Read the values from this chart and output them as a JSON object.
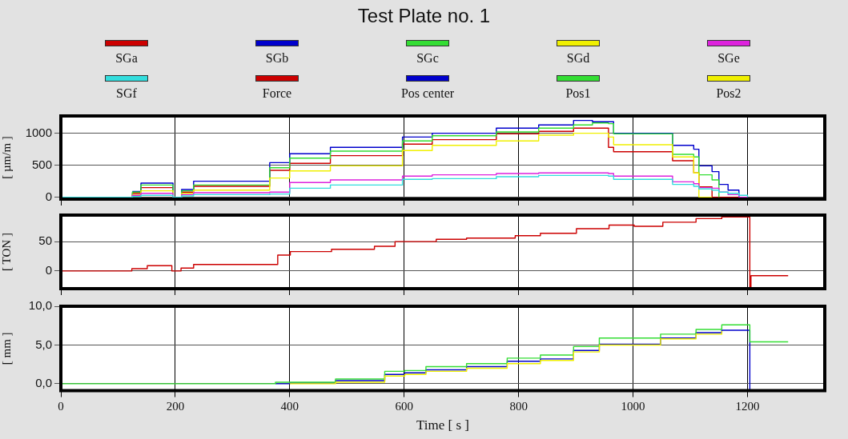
{
  "chart_data": [
    {
      "type": "step",
      "title": "Test Plate no. 1",
      "ylabel": "[ µm/m ]",
      "legend": "top",
      "grid": true,
      "tick_labels": "y",
      "xlim": [
        0,
        1335
      ],
      "xticks": [
        0,
        200,
        400,
        600,
        800,
        1000,
        1200
      ],
      "ylim": [
        -30,
        1270
      ],
      "yticks": [
        0,
        500,
        1000
      ],
      "x": [
        0,
        120,
        125,
        140,
        196,
        211,
        232,
        338,
        365,
        400,
        471,
        555,
        597,
        649,
        761,
        835,
        896,
        929,
        957,
        966,
        1045,
        1069,
        1106,
        1115,
        1138,
        1150,
        1166,
        1185,
        1200
      ],
      "series": [
        {
          "name": "SGa",
          "color": "#cc0000",
          "values": [
            0,
            0,
            60,
            150,
            0,
            80,
            170,
            170,
            420,
            530,
            650,
            650,
            830,
            900,
            990,
            1030,
            1080,
            1080,
            780,
            710,
            710,
            570,
            380,
            160,
            0,
            0,
            0,
            0,
            0
          ]
        },
        {
          "name": "SGb",
          "color": "#0000cc",
          "values": [
            null,
            null,
            90,
            220,
            0,
            120,
            250,
            250,
            540,
            680,
            780,
            780,
            940,
            1000,
            1080,
            1130,
            1200,
            1180,
            1180,
            1000,
            1000,
            810,
            750,
            490,
            400,
            200,
            110,
            0,
            0
          ]
        },
        {
          "name": "SGc",
          "color": "#33dd33",
          "values": [
            0,
            0,
            80,
            190,
            0,
            100,
            190,
            190,
            460,
            610,
            720,
            720,
            880,
            960,
            1020,
            1080,
            1130,
            1160,
            1150,
            990,
            990,
            670,
            630,
            350,
            270,
            0,
            null,
            null,
            null
          ]
        },
        {
          "name": "SGd",
          "color": "#f0f000",
          "values": [
            null,
            null,
            40,
            100,
            0,
            60,
            110,
            110,
            300,
            410,
            490,
            490,
            730,
            810,
            880,
            970,
            1000,
            1000,
            940,
            820,
            820,
            630,
            380,
            0,
            0,
            null,
            null,
            null,
            null
          ]
        },
        {
          "name": "SGe",
          "color": "#dd22dd",
          "values": [
            0,
            0,
            30,
            60,
            0,
            40,
            70,
            70,
            80,
            230,
            270,
            270,
            330,
            350,
            370,
            380,
            380,
            380,
            370,
            330,
            330,
            240,
            210,
            150,
            140,
            80,
            40,
            0,
            0
          ]
        },
        {
          "name": "SGf",
          "color": "#33dddd",
          "values": [
            0,
            0,
            10,
            30,
            0,
            20,
            40,
            40,
            50,
            140,
            190,
            190,
            280,
            290,
            320,
            340,
            340,
            340,
            330,
            280,
            280,
            200,
            170,
            130,
            110,
            80,
            60,
            30,
            0
          ]
        }
      ]
    },
    {
      "type": "step",
      "ylabel": "[ TON ]",
      "legend": "top",
      "grid": true,
      "tick_labels": "y",
      "xlim": [
        0,
        1335
      ],
      "xticks": [
        0,
        200,
        400,
        600,
        800,
        1000,
        1200
      ],
      "ylim": [
        -30,
        95
      ],
      "yticks": [
        0,
        50
      ],
      "x": [
        0,
        124,
        151,
        194,
        210,
        232,
        338,
        379,
        401,
        473,
        548,
        584,
        634,
        656,
        709,
        794,
        838,
        901,
        958,
        1002,
        1052,
        1110,
        1155,
        1204,
        1206,
        1271
      ],
      "series": [
        {
          "name": "Force",
          "color": "#cc0000",
          "values": [
            0,
            4,
            9,
            0,
            5,
            11,
            11,
            27,
            33,
            37,
            42,
            50,
            50,
            54,
            56,
            60,
            64,
            72,
            78,
            76,
            83,
            89,
            92,
            -27,
            -8,
            -8
          ]
        }
      ]
    },
    {
      "type": "step",
      "xlabel": "Time [ s ]",
      "ylabel": "[ mm ]",
      "legend": "top",
      "grid": true,
      "xlim": [
        0,
        1335
      ],
      "xticks": [
        0,
        200,
        400,
        600,
        800,
        1000,
        1200
      ],
      "ylim": [
        -0.9,
        10
      ],
      "yticks": [
        {
          "value": 0,
          "label": "0,0"
        },
        {
          "value": 5,
          "label": "5,0"
        },
        {
          "value": 10,
          "label": "10,0"
        }
      ],
      "x": [
        0,
        375,
        400,
        480,
        566,
        601,
        638,
        709,
        780,
        838,
        896,
        941,
        1048,
        1110,
        1155,
        1204,
        1206,
        1271
      ],
      "series": [
        {
          "name": "Pos center",
          "color": "#0000cc",
          "values": [
            null,
            0,
            0.1,
            0.4,
            1.2,
            1.4,
            1.8,
            2.2,
            2.9,
            3.2,
            4.3,
            5.1,
            5.9,
            6.6,
            6.9,
            -0.8,
            null,
            null
          ]
        },
        {
          "name": "Pos1",
          "color": "#33dd33",
          "values": [
            0,
            0.2,
            0.2,
            0.6,
            1.6,
            1.7,
            2.2,
            2.6,
            3.3,
            3.7,
            4.8,
            5.9,
            6.4,
            7.0,
            7.6,
            5.4,
            5.4,
            5.4
          ]
        },
        {
          "name": "Pos2",
          "color": "#f0f000",
          "values": [
            null,
            null,
            0,
            0.2,
            1.0,
            1.2,
            1.6,
            2.0,
            2.6,
            3.0,
            4.1,
            5.0,
            5.8,
            6.4,
            6.8,
            null,
            null,
            null
          ]
        }
      ]
    }
  ]
}
